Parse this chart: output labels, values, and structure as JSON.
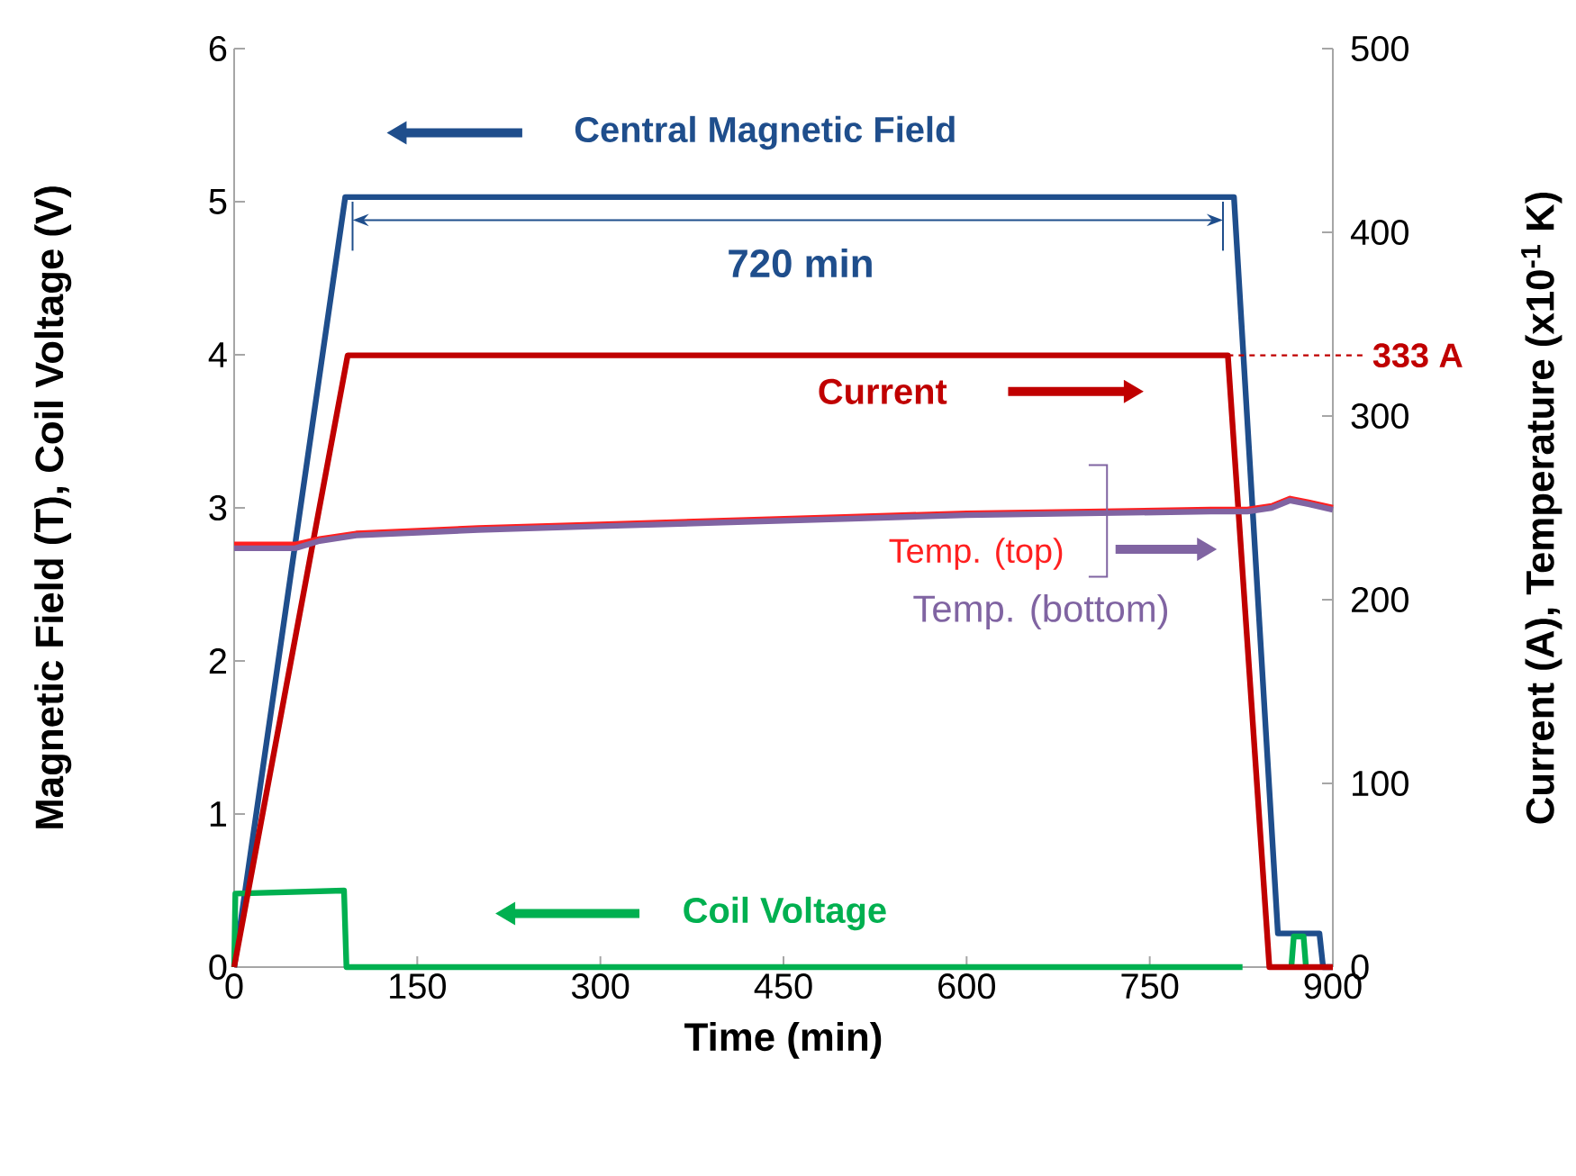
{
  "chart_data": {
    "type": "line",
    "xlabel": "Time (min)",
    "ylabel": "Magnetic Field (T),  Coil Voltage (V)",
    "y2label": "Current (A), Temperature (x10$^{-1}$ K)",
    "xlim": [
      0,
      900
    ],
    "xticks": [
      0,
      150,
      300,
      450,
      600,
      750,
      900
    ],
    "ylim": [
      0,
      6
    ],
    "yticks": [
      0,
      1,
      2,
      3,
      4,
      5,
      6
    ],
    "y2lim": [
      0,
      500
    ],
    "y2ticks": [
      0,
      100,
      200,
      300,
      400,
      500
    ],
    "legend": "center",
    "grid": false,
    "marker": "none",
    "line_style": "solid",
    "series": [
      {
        "name": "Central Magnetic Field",
        "color": "#1f4e8c",
        "axis": "y",
        "x": [
          0,
          91,
          819,
          855,
          889,
          892,
          900
        ],
        "values": [
          0,
          5.03,
          5.03,
          0.22,
          0.22,
          0,
          0
        ]
      },
      {
        "name": "Current",
        "color": "#c00000",
        "axis": "y2",
        "x": [
          0,
          93,
          814,
          848,
          900
        ],
        "values": [
          0,
          333,
          333,
          0,
          0
        ]
      },
      {
        "name": "Temp. (top)",
        "color": "#ff2020",
        "axis": "y2",
        "x": [
          0,
          50,
          70,
          100,
          200,
          300,
          400,
          500,
          600,
          700,
          800,
          830,
          850,
          865,
          880,
          900
        ],
        "values": [
          230,
          230,
          233,
          236,
          239,
          241,
          243,
          245,
          247,
          248,
          249,
          249,
          251,
          255,
          253,
          250
        ]
      },
      {
        "name": "Temp. (bottom)",
        "color": "#8064a2",
        "axis": "y2",
        "x": [
          0,
          50,
          70,
          100,
          200,
          300,
          400,
          500,
          600,
          700,
          800,
          830,
          850,
          865,
          880,
          900
        ],
        "values": [
          228,
          228,
          232,
          235,
          238,
          240,
          242,
          244,
          246,
          247,
          248,
          248,
          250,
          254,
          252,
          249
        ]
      },
      {
        "name": "Coil Voltage",
        "color": "#00b050",
        "axis": "y",
        "x": [
          0,
          1,
          90,
          92,
          826,
          846,
          866,
          868,
          876,
          878
        ],
        "values": [
          0,
          0.48,
          0.5,
          0,
          0,
          null,
          0,
          0.2,
          0.2,
          0
        ]
      }
    ],
    "ref_lines": [
      {
        "axis": "y2",
        "value": 333,
        "label": "333 A",
        "color": "#c00000",
        "line_style": "dashed"
      }
    ],
    "annotations": [
      "720 min"
    ]
  }
}
